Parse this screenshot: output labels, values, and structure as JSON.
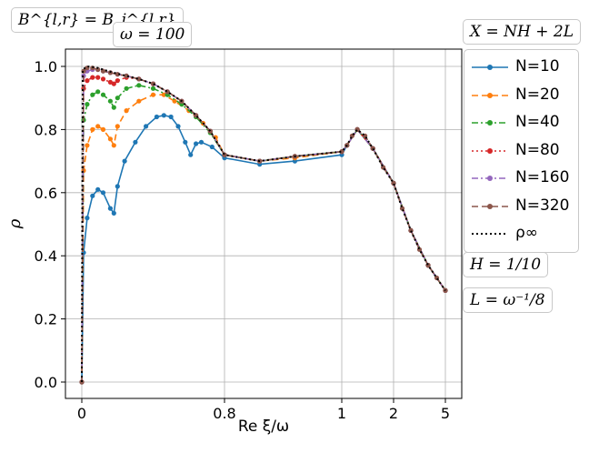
{
  "chart_data": {
    "type": "line",
    "xlabel": "Re ξ/ω",
    "ylabel": "ρ",
    "x_tick_labels": [
      "0",
      "0.8",
      "1",
      "2",
      "5"
    ],
    "y_tick_labels": [
      "0.0",
      "0.2",
      "0.4",
      "0.6",
      "0.8",
      "1.0"
    ],
    "ylim": [
      0,
      1
    ],
    "grid": true,
    "annotations": {
      "top_left": "B^{l,r} = B_j^{l,r}",
      "omega": "ω = 100",
      "top_right": "X = NH + 2L",
      "h_box": "H = 1/10",
      "l_box": "L = ω⁻¹/8"
    },
    "legend_placement": "outside right",
    "series": [
      {
        "name": "N=10",
        "color": "#1f77b4",
        "style": "solid",
        "marker": "dot",
        "points": [
          [
            0,
            0
          ],
          [
            0.01,
            0.41
          ],
          [
            0.03,
            0.52
          ],
          [
            0.06,
            0.59
          ],
          [
            0.09,
            0.61
          ],
          [
            0.12,
            0.6
          ],
          [
            0.16,
            0.55
          ],
          [
            0.18,
            0.535
          ],
          [
            0.2,
            0.62
          ],
          [
            0.24,
            0.7
          ],
          [
            0.3,
            0.76
          ],
          [
            0.36,
            0.81
          ],
          [
            0.42,
            0.84
          ],
          [
            0.46,
            0.845
          ],
          [
            0.5,
            0.84
          ],
          [
            0.54,
            0.81
          ],
          [
            0.58,
            0.76
          ],
          [
            0.61,
            0.72
          ],
          [
            0.64,
            0.755
          ],
          [
            0.67,
            0.76
          ],
          [
            0.73,
            0.745
          ],
          [
            0.8,
            0.71
          ],
          [
            0.86,
            0.69
          ],
          [
            0.92,
            0.7
          ],
          [
            1.0,
            0.72
          ],
          [
            1.1,
            0.75
          ],
          [
            1.3,
            0.8
          ],
          [
            1.6,
            0.74
          ],
          [
            2.0,
            0.63
          ],
          [
            3.0,
            0.48
          ],
          [
            4.0,
            0.37
          ],
          [
            5.0,
            0.29
          ]
        ]
      },
      {
        "name": "N=20",
        "color": "#ff7f0e",
        "style": "dashed",
        "marker": "dot",
        "points": [
          [
            0,
            0
          ],
          [
            0.01,
            0.67
          ],
          [
            0.03,
            0.75
          ],
          [
            0.06,
            0.8
          ],
          [
            0.09,
            0.81
          ],
          [
            0.12,
            0.8
          ],
          [
            0.16,
            0.77
          ],
          [
            0.18,
            0.75
          ],
          [
            0.2,
            0.81
          ],
          [
            0.25,
            0.86
          ],
          [
            0.32,
            0.89
          ],
          [
            0.4,
            0.91
          ],
          [
            0.46,
            0.91
          ],
          [
            0.52,
            0.89
          ],
          [
            0.6,
            0.86
          ],
          [
            0.68,
            0.82
          ],
          [
            0.75,
            0.775
          ],
          [
            0.8,
            0.72
          ],
          [
            0.86,
            0.7
          ],
          [
            0.92,
            0.71
          ],
          [
            1.0,
            0.73
          ],
          [
            1.1,
            0.75
          ],
          [
            1.3,
            0.8
          ],
          [
            1.6,
            0.74
          ],
          [
            2.0,
            0.63
          ],
          [
            3.0,
            0.48
          ],
          [
            4.0,
            0.37
          ],
          [
            5.0,
            0.29
          ]
        ]
      },
      {
        "name": "N=40",
        "color": "#2ca02c",
        "style": "dashdot",
        "marker": "dot",
        "points": [
          [
            0,
            0
          ],
          [
            0.01,
            0.83
          ],
          [
            0.03,
            0.88
          ],
          [
            0.06,
            0.91
          ],
          [
            0.09,
            0.92
          ],
          [
            0.12,
            0.91
          ],
          [
            0.16,
            0.89
          ],
          [
            0.18,
            0.87
          ],
          [
            0.2,
            0.9
          ],
          [
            0.25,
            0.93
          ],
          [
            0.32,
            0.94
          ],
          [
            0.4,
            0.93
          ],
          [
            0.48,
            0.91
          ],
          [
            0.56,
            0.88
          ],
          [
            0.64,
            0.84
          ],
          [
            0.72,
            0.79
          ],
          [
            0.8,
            0.72
          ],
          [
            0.86,
            0.7
          ],
          [
            0.92,
            0.715
          ],
          [
            1.0,
            0.73
          ],
          [
            1.1,
            0.75
          ],
          [
            1.3,
            0.8
          ],
          [
            1.6,
            0.74
          ],
          [
            2.0,
            0.63
          ],
          [
            3.0,
            0.48
          ],
          [
            4.0,
            0.37
          ],
          [
            5.0,
            0.29
          ]
        ]
      },
      {
        "name": "N=80",
        "color": "#d62728",
        "style": "dotted",
        "marker": "dot",
        "points": [
          [
            0,
            0
          ],
          [
            0.01,
            0.93
          ],
          [
            0.03,
            0.955
          ],
          [
            0.06,
            0.965
          ],
          [
            0.09,
            0.965
          ],
          [
            0.12,
            0.96
          ],
          [
            0.16,
            0.95
          ],
          [
            0.18,
            0.945
          ],
          [
            0.2,
            0.955
          ],
          [
            0.25,
            0.965
          ],
          [
            0.32,
            0.96
          ],
          [
            0.4,
            0.945
          ],
          [
            0.48,
            0.92
          ],
          [
            0.56,
            0.89
          ],
          [
            0.64,
            0.845
          ],
          [
            0.72,
            0.795
          ],
          [
            0.8,
            0.72
          ],
          [
            0.86,
            0.7
          ],
          [
            0.92,
            0.715
          ],
          [
            1.0,
            0.73
          ],
          [
            1.1,
            0.75
          ],
          [
            1.3,
            0.8
          ],
          [
            1.6,
            0.74
          ],
          [
            2.0,
            0.63
          ],
          [
            3.0,
            0.48
          ],
          [
            4.0,
            0.37
          ],
          [
            5.0,
            0.29
          ]
        ]
      },
      {
        "name": "N=160",
        "color": "#9467bd",
        "style": "dashdot",
        "marker": "dot",
        "points": [
          [
            0,
            0
          ],
          [
            0.01,
            0.97
          ],
          [
            0.03,
            0.985
          ],
          [
            0.06,
            0.99
          ],
          [
            0.09,
            0.99
          ],
          [
            0.12,
            0.985
          ],
          [
            0.16,
            0.98
          ],
          [
            0.2,
            0.975
          ],
          [
            0.25,
            0.97
          ],
          [
            0.32,
            0.96
          ],
          [
            0.4,
            0.945
          ],
          [
            0.48,
            0.92
          ],
          [
            0.56,
            0.89
          ],
          [
            0.64,
            0.845
          ],
          [
            0.72,
            0.795
          ],
          [
            0.8,
            0.72
          ],
          [
            0.86,
            0.7
          ],
          [
            0.92,
            0.715
          ],
          [
            1.0,
            0.73
          ],
          [
            1.1,
            0.75
          ],
          [
            1.3,
            0.8
          ],
          [
            1.6,
            0.74
          ],
          [
            2.0,
            0.63
          ],
          [
            3.0,
            0.48
          ],
          [
            4.0,
            0.37
          ],
          [
            5.0,
            0.29
          ]
        ]
      },
      {
        "name": "N=320",
        "color": "#8c564b",
        "style": "dashed",
        "marker": "dot",
        "points": [
          [
            0,
            0
          ],
          [
            0.01,
            0.985
          ],
          [
            0.03,
            0.995
          ],
          [
            0.06,
            0.995
          ],
          [
            0.09,
            0.99
          ],
          [
            0.12,
            0.985
          ],
          [
            0.16,
            0.98
          ],
          [
            0.2,
            0.975
          ],
          [
            0.25,
            0.97
          ],
          [
            0.32,
            0.96
          ],
          [
            0.4,
            0.945
          ],
          [
            0.48,
            0.92
          ],
          [
            0.56,
            0.89
          ],
          [
            0.64,
            0.845
          ],
          [
            0.72,
            0.795
          ],
          [
            0.8,
            0.72
          ],
          [
            0.86,
            0.7
          ],
          [
            0.92,
            0.715
          ],
          [
            1.0,
            0.73
          ],
          [
            1.1,
            0.75
          ],
          [
            1.2,
            0.78
          ],
          [
            1.3,
            0.8
          ],
          [
            1.45,
            0.78
          ],
          [
            1.6,
            0.74
          ],
          [
            1.8,
            0.68
          ],
          [
            2.0,
            0.63
          ],
          [
            2.5,
            0.55
          ],
          [
            3.0,
            0.48
          ],
          [
            3.5,
            0.42
          ],
          [
            4.0,
            0.37
          ],
          [
            4.5,
            0.33
          ],
          [
            5.0,
            0.29
          ]
        ]
      },
      {
        "name": "ρ∞",
        "color": "#000000",
        "style": "dotted",
        "marker": "none",
        "points": [
          [
            0,
            0
          ],
          [
            0.005,
            0.99
          ],
          [
            0.03,
            1.0
          ],
          [
            0.06,
            0.998
          ],
          [
            0.09,
            0.995
          ],
          [
            0.12,
            0.99
          ],
          [
            0.16,
            0.983
          ],
          [
            0.2,
            0.977
          ],
          [
            0.25,
            0.97
          ],
          [
            0.32,
            0.96
          ],
          [
            0.4,
            0.945
          ],
          [
            0.48,
            0.92
          ],
          [
            0.56,
            0.89
          ],
          [
            0.64,
            0.845
          ],
          [
            0.72,
            0.795
          ],
          [
            0.8,
            0.72
          ],
          [
            0.86,
            0.7
          ],
          [
            0.92,
            0.715
          ],
          [
            1.0,
            0.73
          ],
          [
            1.1,
            0.75
          ],
          [
            1.2,
            0.78
          ],
          [
            1.3,
            0.8
          ],
          [
            1.45,
            0.78
          ],
          [
            1.6,
            0.74
          ],
          [
            1.8,
            0.68
          ],
          [
            2.0,
            0.63
          ],
          [
            2.5,
            0.55
          ],
          [
            3.0,
            0.48
          ],
          [
            3.5,
            0.42
          ],
          [
            4.0,
            0.37
          ],
          [
            4.5,
            0.33
          ],
          [
            5.0,
            0.29
          ]
        ]
      }
    ]
  }
}
